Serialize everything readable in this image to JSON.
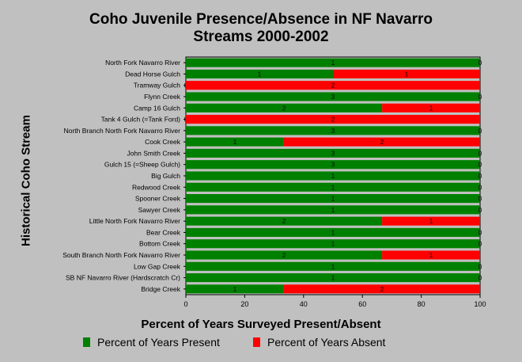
{
  "chart_data": {
    "type": "bar",
    "stacked": true,
    "orientation": "horizontal",
    "title_lines": [
      "Coho Juvenile Presence/Absence in NF Navarro",
      "Streams 2000-2002"
    ],
    "xlabel": "Percent of Years Surveyed Present/Absent",
    "ylabel": "Historical Coho Stream",
    "xlim": [
      0,
      100
    ],
    "xticks": [
      "0",
      "20",
      "40",
      "60",
      "80",
      "100"
    ],
    "grid": false,
    "legend_position": "bottom",
    "categories": [
      "North Fork Navarro River",
      "Dead Horse Gulch",
      "Tramway Gulch",
      "Flynn Creek",
      "Camp 16 Gulch",
      "Tank 4 Gulch (=Tank Ford)",
      "North Branch North Fork Navarro River",
      "Cook Creek",
      "John Smith Creek",
      "Gulch 15 (=Sheep Gulch)",
      "Big Gulch",
      "Redwood Creek",
      "Spooner Creek",
      "Sawyer Creek",
      "Little North Fork Navarro River",
      "Bear Creek",
      "Bottom Creek",
      "South Branch North Fork Navarro River",
      "Low Gap Creek",
      "SB NF Navarro River (Hardscratch Cr)",
      "Bridge Creek"
    ],
    "series": [
      {
        "name": "Percent of Years Present",
        "color": "#008000",
        "values": [
          100,
          50,
          0,
          100,
          66.7,
          0,
          100,
          33.3,
          100,
          100,
          100,
          100,
          100,
          100,
          66.7,
          100,
          100,
          66.7,
          100,
          100,
          33.3
        ],
        "labels": [
          "1",
          "1",
          "0",
          "3",
          "2",
          "0",
          "3",
          "1",
          "3",
          "3",
          "1",
          "1",
          "1",
          "1",
          "2",
          "1",
          "1",
          "2",
          "1",
          "1",
          "1"
        ]
      },
      {
        "name": "Percent of Years Absent",
        "color": "#ff0000",
        "values": [
          0,
          50,
          100,
          0,
          33.3,
          100,
          0,
          66.7,
          0,
          0,
          0,
          0,
          0,
          0,
          33.3,
          0,
          0,
          33.3,
          0,
          0,
          66.7
        ],
        "labels": [
          "0",
          "1",
          "2",
          "0",
          "1",
          "2",
          "0",
          "2",
          "0",
          "0",
          "0",
          "0",
          "0",
          "0",
          "1",
          "0",
          "0",
          "1",
          "0",
          "0",
          "2"
        ]
      }
    ]
  }
}
